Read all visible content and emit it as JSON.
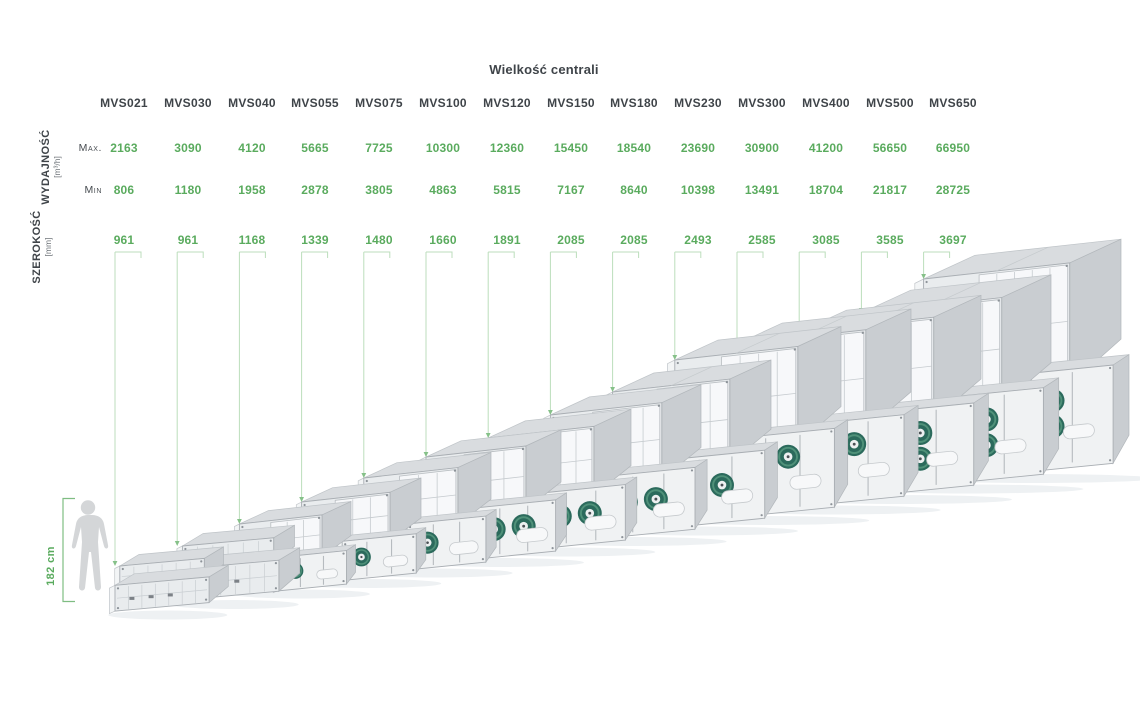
{
  "title": "Wielkość centrali",
  "rows": {
    "capacity_label": "WYDAJNOŚĆ",
    "capacity_unit": "[m³/h]",
    "max_label": "Max.",
    "min_label": "Min",
    "width_label": "SZEROKOŚĆ",
    "width_unit": "[mm]"
  },
  "scale_figure": {
    "height_label": "182 cm"
  },
  "colors": {
    "accent_green": "#5aab5e",
    "guide_green": "#bcdebc",
    "text_dark": "#3f4449",
    "fan_teal": "#2b6a5c",
    "unit_gray": "#e9ecee"
  },
  "models": [
    {
      "name": "MVS021",
      "max": "2163",
      "min": "806",
      "width": "961"
    },
    {
      "name": "MVS030",
      "max": "3090",
      "min": "1180",
      "width": "961"
    },
    {
      "name": "MVS040",
      "max": "4120",
      "min": "1958",
      "width": "1168"
    },
    {
      "name": "MVS055",
      "max": "5665",
      "min": "2878",
      "width": "1339"
    },
    {
      "name": "MVS075",
      "max": "7725",
      "min": "3805",
      "width": "1480"
    },
    {
      "name": "MVS100",
      "max": "10300",
      "min": "4863",
      "width": "1660"
    },
    {
      "name": "MVS120",
      "max": "12360",
      "min": "5815",
      "width": "1891"
    },
    {
      "name": "MVS150",
      "max": "15450",
      "min": "7167",
      "width": "2085"
    },
    {
      "name": "MVS180",
      "max": "18540",
      "min": "8640",
      "width": "2085"
    },
    {
      "name": "MVS230",
      "max": "23690",
      "min": "10398",
      "width": "2493"
    },
    {
      "name": "MVS300",
      "max": "30900",
      "min": "13491",
      "width": "2585"
    },
    {
      "name": "MVS400",
      "max": "41200",
      "min": "18704",
      "width": "3085"
    },
    {
      "name": "MVS500",
      "max": "56650",
      "min": "21817",
      "width": "3585"
    },
    {
      "name": "MVS650",
      "max": "66950",
      "min": "28725",
      "width": "3697"
    }
  ],
  "chart_data": {
    "type": "table",
    "title": "Wielkość centrali",
    "categories": [
      "MVS021",
      "MVS030",
      "MVS040",
      "MVS055",
      "MVS075",
      "MVS100",
      "MVS120",
      "MVS150",
      "MVS180",
      "MVS230",
      "MVS300",
      "MVS400",
      "MVS500",
      "MVS650"
    ],
    "series": [
      {
        "name": "Wydajność max [m³/h]",
        "values": [
          2163,
          3090,
          4120,
          5665,
          7725,
          10300,
          12360,
          15450,
          18540,
          23690,
          30900,
          41200,
          56650,
          66950
        ]
      },
      {
        "name": "Wydajność min [m³/h]",
        "values": [
          806,
          1180,
          1958,
          2878,
          3805,
          4863,
          5815,
          7167,
          8640,
          10398,
          13491,
          18704,
          21817,
          28725
        ]
      },
      {
        "name": "Szerokość [mm]",
        "values": [
          961,
          961,
          1168,
          1339,
          1480,
          1660,
          1891,
          2085,
          2085,
          2493,
          2585,
          3085,
          3585,
          3697
        ]
      }
    ],
    "annotations": [
      "182 cm"
    ],
    "legend_position": "none",
    "grid": false
  }
}
